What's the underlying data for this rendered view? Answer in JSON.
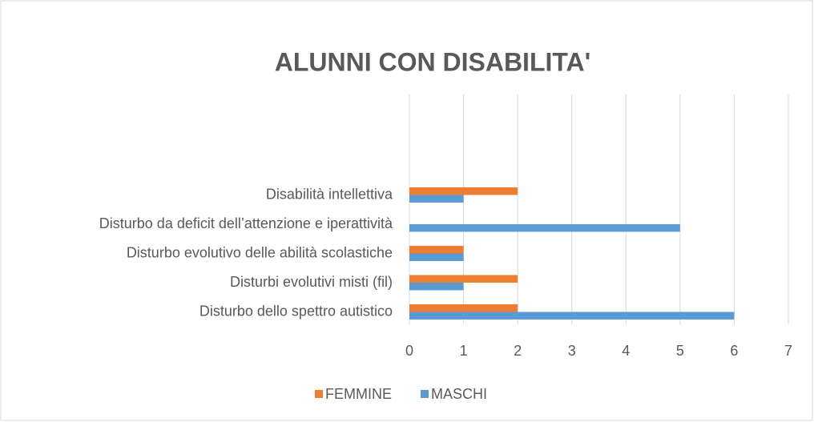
{
  "chart_data": {
    "type": "bar",
    "orientation": "horizontal",
    "title": "ALUNNI CON DISABILITA'",
    "categories": [
      "Disturbo dello spettro autistico",
      "Disturbi evolutivi misti (fil)",
      "Disturbo evolutivo delle abilità scolastiche",
      "Disturbo da deficit dell’attenzione e iperattività",
      "Disabilità intellettiva"
    ],
    "series": [
      {
        "name": "FEMMINE",
        "color": "#ed7d31",
        "values": [
          2,
          2,
          1,
          0,
          2
        ]
      },
      {
        "name": "MASCHI",
        "color": "#5b9bd5",
        "values": [
          6,
          1,
          1,
          5,
          1
        ]
      }
    ],
    "xlim": [
      0,
      7
    ],
    "xticks": [
      0,
      1,
      2,
      3,
      4,
      5,
      6,
      7
    ],
    "grid": true,
    "legend": "bottom"
  }
}
